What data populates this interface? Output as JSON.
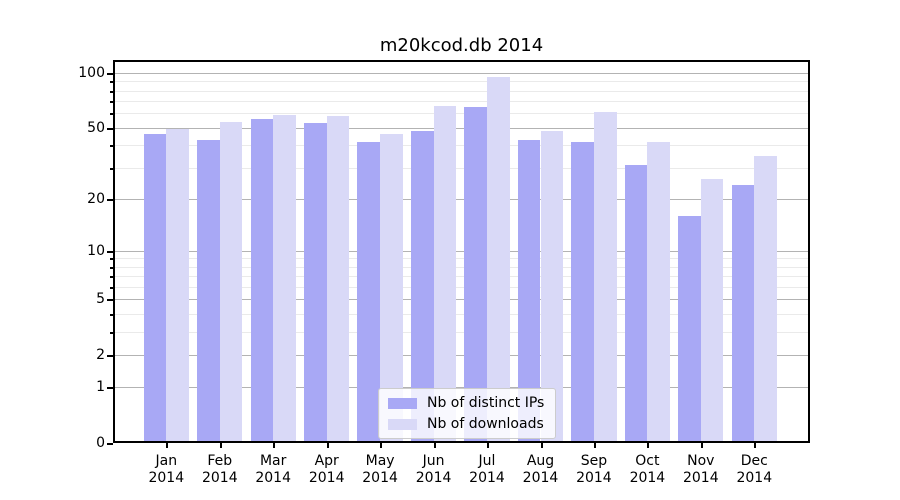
{
  "chart_data": {
    "type": "bar",
    "title": "m20kcod.db 2014",
    "year_label": "2014",
    "months": [
      "Jan",
      "Feb",
      "Mar",
      "Apr",
      "May",
      "Jun",
      "Jul",
      "Aug",
      "Sep",
      "Oct",
      "Nov",
      "Dec"
    ],
    "series": [
      {
        "name": "Nb of distinct IPs",
        "color": "#a8a8f5",
        "values": [
          46,
          43,
          56,
          53,
          42,
          48,
          65,
          43,
          42,
          31,
          16,
          24
        ]
      },
      {
        "name": "Nb of downloads",
        "color": "#d9d9f7",
        "values": [
          49,
          54,
          59,
          58,
          46,
          66,
          95,
          48,
          61,
          42,
          26,
          35
        ]
      }
    ],
    "y_axis": {
      "scale": "log1p",
      "major_ticks": [
        0,
        1,
        2,
        5,
        10,
        20,
        50,
        100
      ],
      "minor_ticks": [
        3,
        4,
        6,
        7,
        8,
        9,
        30,
        40,
        60,
        70,
        80,
        90
      ],
      "top_value": 118
    },
    "xlabel": "",
    "ylabel": "",
    "grid": true,
    "legend_position": "bottom-center",
    "colors": {
      "major_grid": "#b3b3b3",
      "minor_grid": "#eaeaea",
      "frame": "#000000",
      "background": "#ffffff"
    }
  }
}
